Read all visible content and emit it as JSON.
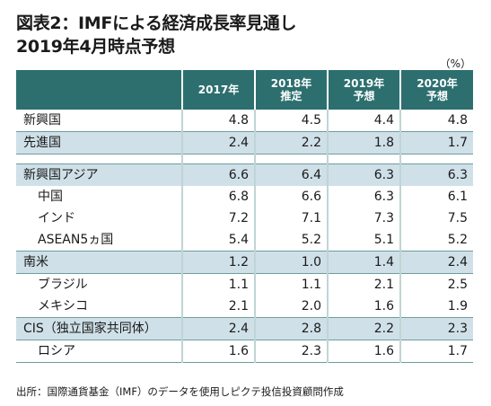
{
  "title_line1": "図表2：IMFによる経済成長率見通し",
  "title_line2": "2019年4月時点予想",
  "unit": "（%）",
  "columns": [
    {
      "line1": "2017年",
      "line2": ""
    },
    {
      "line1": "2018年",
      "line2": "推定"
    },
    {
      "line1": "2019年",
      "line2": "予想"
    },
    {
      "line1": "2020年",
      "line2": "予想"
    }
  ],
  "rows": [
    {
      "name": "新興国",
      "values": [
        "4.8",
        "4.5",
        "4.4",
        "4.8"
      ]
    },
    {
      "name": "先進国",
      "values": [
        "2.4",
        "2.2",
        "1.8",
        "1.7"
      ]
    },
    {
      "name": "新興国アジア",
      "values": [
        "6.6",
        "6.4",
        "6.3",
        "6.3"
      ]
    },
    {
      "name": "中国",
      "values": [
        "6.8",
        "6.6",
        "6.3",
        "6.1"
      ]
    },
    {
      "name": "インド",
      "values": [
        "7.2",
        "7.1",
        "7.3",
        "7.5"
      ]
    },
    {
      "name": "ASEAN5ヵ国",
      "values": [
        "5.4",
        "5.2",
        "5.1",
        "5.2"
      ]
    },
    {
      "name": "南米",
      "values": [
        "1.2",
        "1.0",
        "1.4",
        "2.4"
      ]
    },
    {
      "name": "ブラジル",
      "values": [
        "1.1",
        "1.1",
        "2.1",
        "2.5"
      ]
    },
    {
      "name": "メキシコ",
      "values": [
        "2.1",
        "2.0",
        "1.6",
        "1.9"
      ]
    },
    {
      "name": "CIS（独立国家共同体）",
      "values": [
        "2.4",
        "2.8",
        "2.2",
        "2.3"
      ]
    },
    {
      "name": "ロシア",
      "values": [
        "1.6",
        "2.3",
        "1.6",
        "1.7"
      ]
    }
  ],
  "source": "出所：国際通貨基金（IMF）のデータを使用しピクテ投信投資顧問作成",
  "colors": {
    "header": "#2d6f6f",
    "highlight": "#cfe0e8"
  }
}
